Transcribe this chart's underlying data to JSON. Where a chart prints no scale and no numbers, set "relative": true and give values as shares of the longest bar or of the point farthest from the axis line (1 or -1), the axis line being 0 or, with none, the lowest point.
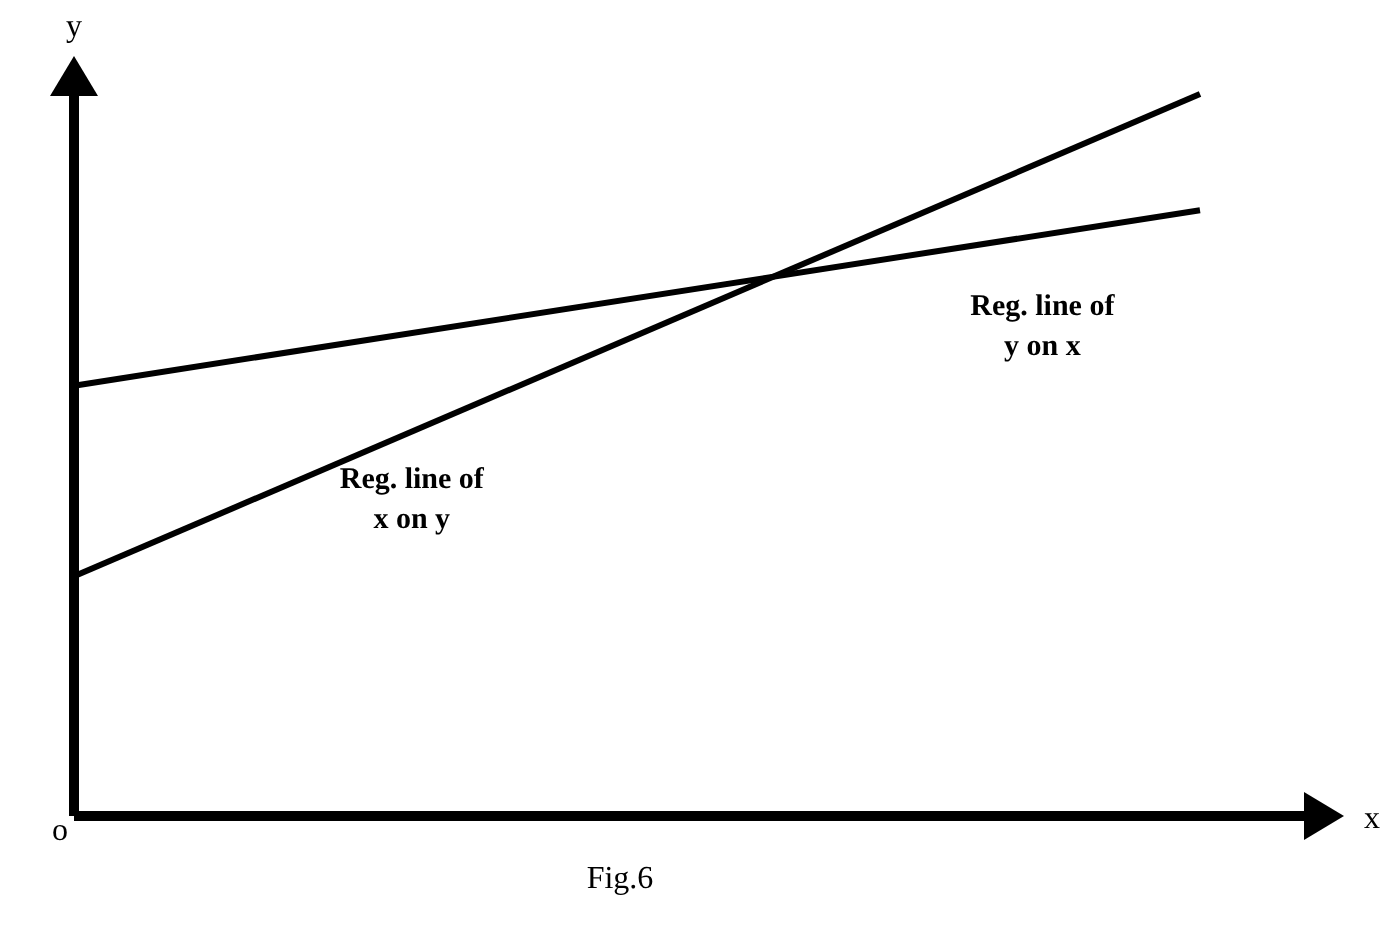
{
  "chart_data": {
    "type": "line",
    "relative": true,
    "xlabel": "x",
    "ylabel": "y",
    "marker": "none",
    "line_style": "solid",
    "categories": [
      null,
      null
    ],
    "series": [
      {
        "name": "Reg. line of y on x",
        "color": "#000000",
        "values": [
          0.596,
          0.839
        ]
      },
      {
        "name": "Reg. line of x on y",
        "color": "#000000",
        "values": [
          0.332,
          1
        ]
      }
    ],
    "annotations": [
      "o",
      "Fig.6"
    ]
  }
}
